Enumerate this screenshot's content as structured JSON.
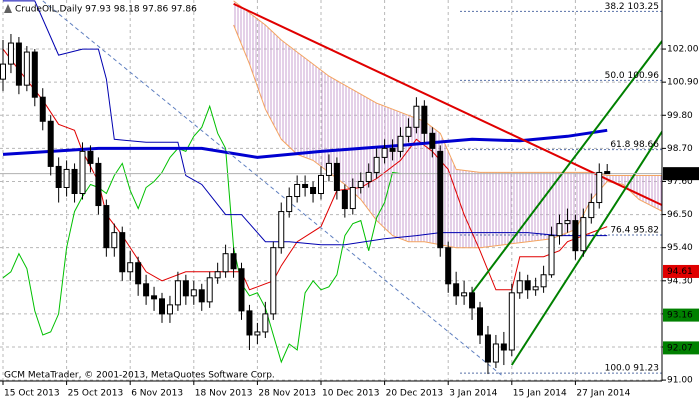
{
  "chart_data": {
    "type": "candlestick",
    "title": "CrudeOIL,Daily  97.93 98.18 97.86 97.86",
    "footer": "GCM MetaTrader, © 2001-2013, MetaQuotes Software Corp.",
    "categories": [
      "15 Oct 2013",
      null,
      null,
      null,
      null,
      null,
      null,
      null,
      "25 Oct 2013",
      null,
      null,
      null,
      null,
      null,
      null,
      null,
      "6 Nov 2013",
      null,
      null,
      null,
      null,
      null,
      null,
      null,
      "18 Nov 2013",
      null,
      null,
      null,
      null,
      null,
      null,
      null,
      "28 Nov 2013",
      null,
      null,
      null,
      null,
      null,
      null,
      null,
      "10 Dec 2013",
      null,
      null,
      null,
      null,
      null,
      null,
      null,
      "20 Dec 2013",
      null,
      null,
      null,
      null,
      null,
      null,
      null,
      "3 Jan 2014",
      null,
      null,
      null,
      null,
      null,
      null,
      null,
      "15 Jan 2014",
      null,
      null,
      null,
      null,
      null,
      null,
      null,
      "27 Jan 2014",
      null,
      null,
      null,
      null,
      null,
      null,
      null,
      null,
      null,
      null,
      null
    ],
    "open": [
      101.0,
      101.5,
      102.2,
      100.8,
      101.9,
      100.4,
      99.6,
      98.1,
      97.4,
      98.0,
      97.2,
      98.6,
      98.2,
      96.8,
      95.4,
      95.9,
      94.6,
      94.9,
      94.2,
      93.8,
      93.7,
      93.2,
      93.5,
      94.3,
      93.8,
      94.0,
      93.6,
      94.4,
      94.6,
      95.2,
      94.7,
      93.3,
      92.5,
      92.6,
      93.2,
      95.4,
      96.6,
      97.1,
      97.5,
      97.4,
      97.2,
      97.8,
      98.2,
      97.3,
      96.7,
      97.4,
      97.6,
      97.9,
      98.4,
      98.7,
      98.6,
      99.1,
      99.4,
      100.1,
      99.2,
      98.6,
      95.4,
      94.2,
      93.8,
      93.9,
      93.4,
      92.5,
      91.6,
      92.2,
      92.0,
      93.9,
      94.3,
      94.0,
      94.1,
      94.5,
      95.8,
      96.2,
      96.3,
      95.3,
      96.4,
      96.9,
      97.93,
      null,
      null,
      null,
      null,
      null,
      null,
      null
    ],
    "high": [
      102.3,
      102.5,
      102.4,
      102.1,
      102.0,
      100.7,
      99.8,
      98.4,
      98.3,
      98.2,
      98.9,
      98.8,
      98.4,
      97.0,
      96.2,
      96.1,
      95.3,
      95.1,
      94.5,
      94.1,
      93.9,
      93.8,
      94.6,
      94.5,
      94.3,
      94.2,
      94.6,
      94.9,
      95.5,
      95.4,
      94.9,
      93.5,
      92.9,
      93.6,
      95.6,
      96.9,
      97.4,
      97.8,
      97.8,
      97.6,
      98.1,
      98.5,
      98.4,
      97.5,
      97.7,
      97.9,
      98.2,
      98.7,
      99.0,
      99.0,
      99.4,
      99.7,
      100.4,
      100.3,
      99.4,
      98.8,
      95.6,
      94.6,
      94.3,
      94.1,
      93.6,
      92.8,
      92.5,
      92.6,
      94.2,
      94.6,
      94.5,
      94.4,
      94.8,
      96.1,
      96.5,
      96.7,
      96.5,
      96.7,
      97.2,
      98.2,
      98.18,
      null,
      null,
      null,
      null,
      null,
      null,
      null
    ],
    "low": [
      100.6,
      101.2,
      100.5,
      100.6,
      100.1,
      99.3,
      97.8,
      96.9,
      97.1,
      96.9,
      97.0,
      97.9,
      96.5,
      95.1,
      95.1,
      94.3,
      94.3,
      93.8,
      93.5,
      93.3,
      92.9,
      92.9,
      93.3,
      93.5,
      93.5,
      93.3,
      93.4,
      94.2,
      94.4,
      94.4,
      93.0,
      92.0,
      92.2,
      92.4,
      93.0,
      95.2,
      96.4,
      96.9,
      97.1,
      96.9,
      97.0,
      97.6,
      97.0,
      96.4,
      96.5,
      97.2,
      97.4,
      97.7,
      98.2,
      98.3,
      98.4,
      98.9,
      99.2,
      98.9,
      98.4,
      95.1,
      93.9,
      93.5,
      93.5,
      93.0,
      92.2,
      91.2,
      91.4,
      91.5,
      91.8,
      93.7,
      93.7,
      93.8,
      93.9,
      94.4,
      95.5,
      95.9,
      95.0,
      95.1,
      96.2,
      96.7,
      97.86,
      null,
      null,
      null,
      null,
      null,
      null,
      null
    ],
    "close": [
      101.5,
      102.2,
      100.8,
      101.9,
      100.4,
      99.6,
      98.1,
      97.4,
      98.0,
      97.2,
      98.6,
      98.2,
      96.8,
      95.4,
      95.9,
      94.6,
      94.9,
      94.2,
      93.8,
      93.7,
      93.2,
      93.5,
      94.3,
      93.8,
      94.0,
      93.6,
      94.4,
      94.6,
      95.2,
      94.7,
      93.3,
      92.5,
      92.6,
      93.2,
      95.4,
      96.6,
      97.1,
      97.5,
      97.4,
      97.2,
      97.8,
      98.2,
      97.3,
      96.7,
      97.4,
      97.6,
      97.9,
      98.4,
      98.7,
      98.6,
      99.1,
      99.4,
      100.1,
      99.2,
      98.7,
      95.4,
      94.2,
      93.8,
      93.9,
      93.4,
      92.5,
      91.6,
      92.2,
      92.0,
      93.9,
      94.3,
      94.0,
      94.1,
      94.5,
      95.8,
      96.2,
      96.3,
      95.3,
      96.4,
      96.9,
      97.9,
      97.86,
      null,
      null,
      null,
      null,
      null,
      null,
      null
    ],
    "candle_colors": {
      "up": "#ffffff",
      "down": "#000000",
      "outline": "#000000"
    },
    "ylim": [
      90.97,
      103.63
    ],
    "yticks": [
      {
        "value": 102,
        "label": "102.00"
      },
      {
        "value": 100.9,
        "label": "100.90"
      },
      {
        "value": 99.8,
        "label": "99.80"
      },
      {
        "value": 98.7,
        "label": "98.70"
      },
      {
        "value": 97.6,
        "label": "97.60"
      },
      {
        "value": 96.5,
        "label": "96.50"
      },
      {
        "value": 95.4,
        "label": "95.40"
      },
      {
        "value": 94.3,
        "label": "94.30"
      },
      {
        "value": 93.2,
        "label": "93.20"
      },
      {
        "value": 92.1,
        "label": "92.10"
      },
      {
        "value": 91,
        "label": "91.00"
      }
    ],
    "grid": true,
    "chikou": {
      "shift": 26,
      "color": "#00c000"
    },
    "cloud": {
      "x": [
        29,
        31,
        33,
        35,
        37,
        39,
        41,
        43,
        45,
        47,
        49,
        51,
        53,
        55,
        57,
        60,
        63,
        66,
        69,
        72,
        74,
        76,
        78,
        80,
        83
      ],
      "span_a": [
        102.8,
        101.5,
        100.0,
        99.0,
        98.5,
        98.3,
        97.9,
        97.5,
        97.0,
        96.3,
        95.8,
        95.6,
        95.6,
        95.5,
        95.4,
        95.4,
        95.5,
        95.6,
        95.7,
        96.0,
        97.0,
        97.6,
        97.5,
        97.0,
        96.6
      ],
      "span_b": [
        103.6,
        103.2,
        102.8,
        102.3,
        101.9,
        101.5,
        101.1,
        100.8,
        100.5,
        100.2,
        100.0,
        99.8,
        99.6,
        99.2,
        98.0,
        97.9,
        97.9,
        97.9,
        97.9,
        97.9,
        97.9,
        97.8,
        97.8,
        97.8,
        97.8
      ],
      "line_color": "#f4a460",
      "fill_color": "#c8a0d0"
    },
    "lines": [
      {
        "x": [
          0,
          2,
          5,
          7,
          9,
          10,
          12,
          13,
          15,
          18,
          20,
          23,
          26,
          30,
          31,
          34,
          35,
          37,
          40,
          42,
          45,
          47,
          50,
          52,
          54,
          56,
          58,
          60,
          62,
          64,
          65,
          68,
          70,
          71,
          74,
          76
        ],
        "values": [
          102.0,
          101.3,
          100.3,
          99.5,
          99.3,
          98.6,
          97.6,
          96.5,
          95.8,
          94.6,
          94.3,
          94.6,
          94.6,
          94.6,
          94.0,
          94.3,
          94.8,
          95.6,
          96.1,
          97.3,
          97.4,
          97.7,
          98.3,
          99.0,
          98.6,
          98.0,
          96.5,
          95.3,
          94.0,
          94.0,
          95.1,
          95.1,
          95.3,
          95.6,
          95.9,
          96.1
        ],
        "color": "#e00000",
        "width": 1
      },
      {
        "x": [
          0,
          4,
          7,
          10,
          12,
          13,
          14,
          18,
          22,
          23,
          25,
          28,
          30,
          33,
          36,
          40,
          43,
          48,
          52,
          55,
          58,
          62,
          66,
          70,
          74,
          76
        ],
        "values": [
          103.6,
          103.6,
          101.8,
          102.0,
          102.0,
          101.0,
          99.0,
          98.9,
          98.9,
          97.8,
          97.5,
          96.5,
          96.5,
          95.6,
          95.6,
          95.5,
          95.5,
          95.7,
          95.8,
          95.9,
          95.9,
          95.9,
          95.9,
          95.8,
          95.8,
          95.8
        ],
        "color": "#0000b0",
        "width": 1
      },
      {
        "x": [
          0,
          12,
          25,
          32,
          40,
          50,
          59,
          65,
          71,
          76
        ],
        "values": [
          98.5,
          98.7,
          98.7,
          98.4,
          98.6,
          98.8,
          99.0,
          98.95,
          99.1,
          99.3
        ],
        "color": "#0000d0",
        "width": 3
      },
      {
        "x": [
          29,
          83
        ],
        "values": [
          103.5,
          96.8
        ],
        "color": "#e00000",
        "width": 2
      },
      {
        "x": [
          59,
          83
        ],
        "values": [
          93.9,
          102.3
        ],
        "color": "#008000",
        "width": 2
      },
      {
        "x": [
          64,
          83
        ],
        "values": [
          91.5,
          99.3
        ],
        "color": "#008000",
        "width": 2
      },
      {
        "x": [
          5,
          63
        ],
        "values": [
          103.6,
          91.1
        ],
        "color": "#6080c0",
        "width": 1,
        "dash": true
      }
    ],
    "fib_color": "#5870a8",
    "fib_levels": [
      {
        "value": 103.25,
        "label": "38.2 103.25"
      },
      {
        "value": 100.96,
        "label": "50.0 100.96"
      },
      {
        "value": 98.66,
        "label": "61.8 98.66"
      },
      {
        "value": 95.82,
        "label": "76.4 95.82"
      },
      {
        "value": 91.23,
        "label": "100.0 91.23"
      }
    ],
    "price_labels": [
      {
        "value": 97.86,
        "label": "97.86",
        "color": "#000000",
        "line": true
      },
      {
        "value": 94.61,
        "label": "94.61",
        "color": "#e00000"
      },
      {
        "value": 93.16,
        "label": "93.16",
        "color": "#008000"
      },
      {
        "value": 92.07,
        "label": "92.07",
        "color": "#008000"
      }
    ]
  }
}
